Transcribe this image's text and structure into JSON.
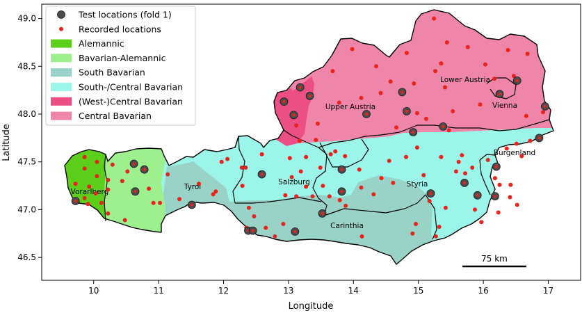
{
  "map": {
    "x_axis_label": "Longitude",
    "y_axis_label": "Latitude",
    "x_ticks": [
      "10",
      "11",
      "12",
      "13",
      "14",
      "15",
      "16",
      "17"
    ],
    "y_ticks": [
      "49.0",
      "48.5",
      "48.0",
      "47.5",
      "47.0",
      "46.5"
    ],
    "scale_bar_label": "75 km",
    "region_labels": [
      "Vorarlberg",
      "Tyrol",
      "Salzburg",
      "Upper Austria",
      "Lower Austria",
      "Vienna",
      "Burgenland",
      "Styria",
      "Carinthia"
    ],
    "legend": [
      {
        "label": "Test locations (fold 1)",
        "kind": "big-dot",
        "color": "#4d4d4d"
      },
      {
        "label": "Recorded locations",
        "kind": "small-dot",
        "color": "#e8221c"
      },
      {
        "label": "Alemannic",
        "kind": "patch",
        "color": "#5ccf1a"
      },
      {
        "label": "Bavarian-Alemannic",
        "kind": "patch",
        "color": "#9ef08e"
      },
      {
        "label": "South Bavarian",
        "kind": "patch",
        "color": "#99d3c8"
      },
      {
        "label": "South-/Central Bavarian",
        "kind": "patch",
        "color": "#9bf5e8"
      },
      {
        "label": "(West-)Central Bavarian",
        "kind": "patch",
        "color": "#eb4f85"
      },
      {
        "label": "Central Bavarian",
        "kind": "patch",
        "color": "#ef86aa"
      }
    ]
  },
  "chart_data": {
    "type": "scatter",
    "xlabel": "Longitude",
    "ylabel": "Latitude",
    "xlim": [
      9.2,
      17.5
    ],
    "ylim": [
      46.2,
      49.15
    ],
    "grid": false,
    "legend_position": "top-left",
    "series": [
      {
        "name": "Test locations (fold 1)",
        "points": [
          [
            9.72,
            47.09
          ],
          [
            10.62,
            47.48
          ],
          [
            10.78,
            47.42
          ],
          [
            10.64,
            47.19
          ],
          [
            11.51,
            47.05
          ],
          [
            12.38,
            46.78
          ],
          [
            12.45,
            46.78
          ],
          [
            12.59,
            47.37
          ],
          [
            13.1,
            46.77
          ],
          [
            13.52,
            46.96
          ],
          [
            12.93,
            48.13
          ],
          [
            13.18,
            48.28
          ],
          [
            13.33,
            48.19
          ],
          [
            13.08,
            47.99
          ],
          [
            13.82,
            47.42
          ],
          [
            13.82,
            47.19
          ],
          [
            14.2,
            48.0
          ],
          [
            14.75,
            48.23
          ],
          [
            14.82,
            48.03
          ],
          [
            14.92,
            47.81
          ],
          [
            15.38,
            47.87
          ],
          [
            15.19,
            47.17
          ],
          [
            15.71,
            47.28
          ],
          [
            15.91,
            47.15
          ],
          [
            16.18,
            47.14
          ],
          [
            16.2,
            47.45
          ],
          [
            16.25,
            48.21
          ],
          [
            16.52,
            48.35
          ],
          [
            16.86,
            47.75
          ],
          [
            16.95,
            48.08
          ]
        ]
      },
      {
        "name": "Recorded locations",
        "points": [
          [
            9.86,
            47.55
          ],
          [
            10.05,
            47.5
          ],
          [
            9.86,
            47.43
          ],
          [
            10.05,
            47.35
          ],
          [
            9.72,
            47.27
          ],
          [
            9.93,
            47.24
          ],
          [
            10.03,
            47.17
          ],
          [
            9.86,
            47.12
          ],
          [
            10.22,
            47.21
          ],
          [
            9.91,
            47.06
          ],
          [
            10.12,
            47.07
          ],
          [
            10.22,
            47.31
          ],
          [
            10.29,
            47.47
          ],
          [
            10.44,
            47.3
          ],
          [
            10.52,
            47.4
          ],
          [
            10.22,
            46.96
          ],
          [
            10.48,
            46.89
          ],
          [
            10.85,
            47.22
          ],
          [
            10.92,
            47.07
          ],
          [
            11.02,
            47.07
          ],
          [
            11.14,
            47.37
          ],
          [
            11.32,
            47.11
          ],
          [
            11.62,
            47.27
          ],
          [
            11.84,
            47.16
          ],
          [
            11.88,
            47.19
          ],
          [
            11.97,
            47.5
          ],
          [
            12.06,
            47.53
          ],
          [
            12.28,
            47.44
          ],
          [
            12.34,
            47.44
          ],
          [
            12.29,
            47.25
          ],
          [
            12.59,
            47.58
          ],
          [
            12.39,
            47.02
          ],
          [
            12.47,
            46.93
          ],
          [
            12.35,
            46.81
          ],
          [
            12.65,
            46.81
          ],
          [
            12.79,
            46.72
          ],
          [
            13.02,
            47.54
          ],
          [
            13.05,
            47.34
          ],
          [
            12.95,
            47.15
          ],
          [
            12.92,
            46.85
          ],
          [
            13.12,
            47.14
          ],
          [
            13.19,
            47.4
          ],
          [
            13.27,
            47.24
          ],
          [
            13.27,
            47.55
          ],
          [
            13.37,
            47.14
          ],
          [
            13.49,
            47.44
          ],
          [
            13.53,
            47.25
          ],
          [
            13.63,
            47.14
          ],
          [
            13.65,
            47.58
          ],
          [
            13.72,
            47.61
          ],
          [
            13.87,
            47.56
          ],
          [
            13.79,
            47.1
          ],
          [
            13.88,
            47.04
          ],
          [
            14.09,
            47.42
          ],
          [
            14.13,
            46.72
          ],
          [
            13.12,
            47.88
          ],
          [
            13.17,
            47.72
          ],
          [
            13.42,
            47.73
          ],
          [
            13.45,
            47.9
          ],
          [
            13.68,
            48.45
          ],
          [
            13.78,
            48.12
          ],
          [
            13.98,
            48.68
          ],
          [
            14.12,
            48.17
          ],
          [
            14.35,
            48.5
          ],
          [
            14.42,
            48.22
          ],
          [
            14.57,
            48.34
          ],
          [
            14.66,
            47.86
          ],
          [
            14.82,
            48.64
          ],
          [
            14.93,
            48.32
          ],
          [
            14.98,
            48.01
          ],
          [
            15.12,
            47.95
          ],
          [
            15.24,
            49.0
          ],
          [
            15.26,
            48.45
          ],
          [
            15.44,
            48.75
          ],
          [
            15.41,
            48.28
          ],
          [
            15.47,
            47.83
          ],
          [
            15.53,
            48.03
          ],
          [
            15.62,
            47.5
          ],
          [
            15.76,
            48.7
          ],
          [
            16.03,
            48.52
          ],
          [
            15.95,
            48.1
          ],
          [
            16.17,
            48.37
          ],
          [
            16.38,
            48.67
          ],
          [
            16.47,
            48.4
          ],
          [
            16.68,
            48.63
          ],
          [
            16.66,
            47.98
          ],
          [
            16.92,
            48.02
          ],
          [
            15.35,
            48.53
          ],
          [
            14.81,
            47.55
          ],
          [
            14.98,
            47.65
          ],
          [
            15.08,
            47.36
          ],
          [
            15.17,
            47.09
          ],
          [
            15.35,
            47.55
          ],
          [
            15.42,
            47.02
          ],
          [
            15.58,
            47.4
          ],
          [
            15.67,
            47.57
          ],
          [
            15.72,
            47.38
          ],
          [
            15.83,
            47.44
          ],
          [
            15.87,
            47.0
          ],
          [
            16.07,
            47.52
          ],
          [
            16.18,
            47.33
          ],
          [
            16.25,
            47.26
          ],
          [
            16.36,
            47.64
          ],
          [
            16.42,
            47.26
          ],
          [
            16.51,
            47.69
          ],
          [
            16.59,
            47.56
          ],
          [
            16.72,
            47.72
          ],
          [
            16.41,
            47.13
          ],
          [
            16.52,
            47.05
          ],
          [
            15.27,
            46.72
          ],
          [
            15.32,
            46.82
          ],
          [
            14.91,
            46.75
          ],
          [
            14.96,
            46.85
          ],
          [
            14.12,
            47.23
          ],
          [
            14.31,
            47.16
          ],
          [
            14.43,
            47.33
          ],
          [
            14.55,
            47.51
          ],
          [
            14.61,
            47.28
          ],
          [
            15.97,
            46.87
          ],
          [
            16.23,
            46.97
          ]
        ]
      }
    ]
  }
}
